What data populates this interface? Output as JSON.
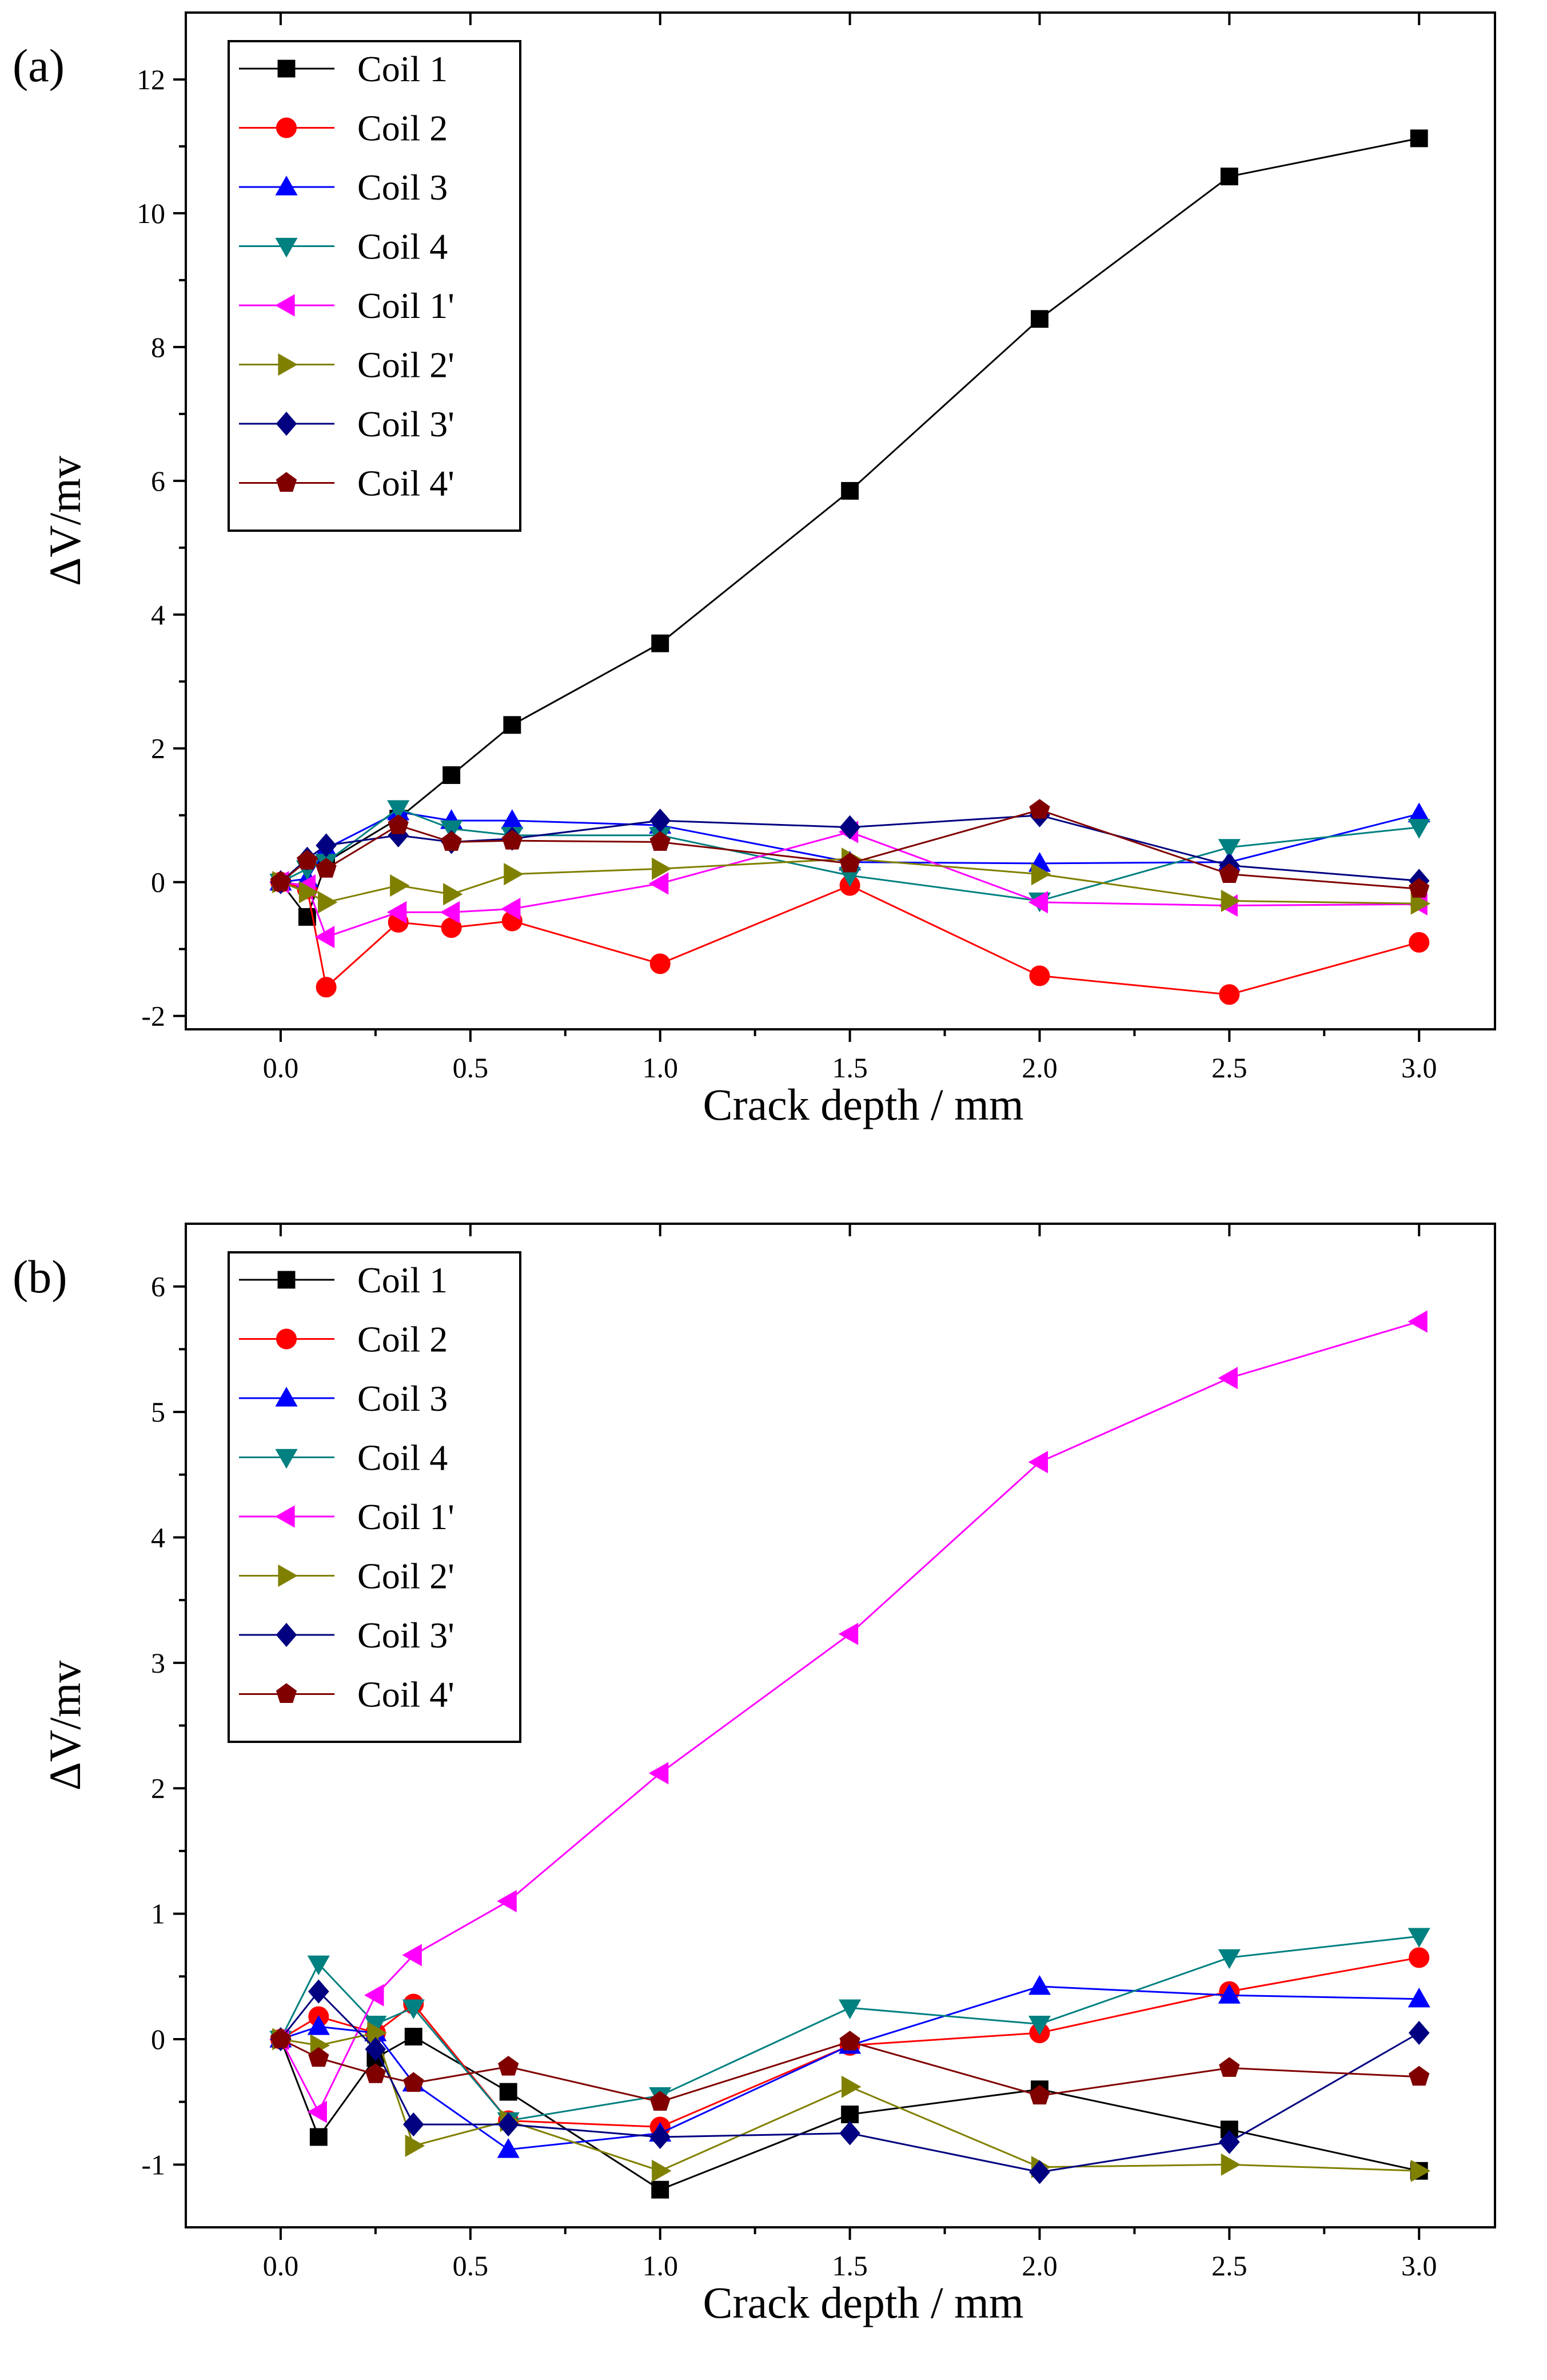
{
  "colors": {
    "Coil 1": "#000000",
    "Coil 2": "#ff0000",
    "Coil 3": "#0000ff",
    "Coil 4": "#008080",
    "Coil 1'": "#ff00ff",
    "Coil 2'": "#808000",
    "Coil 3'": "#000080",
    "Coil 4'": "#800000"
  },
  "markers": {
    "Coil 1": "square",
    "Coil 2": "circle",
    "Coil 3": "triangle-up",
    "Coil 4": "triangle-down",
    "Coil 1'": "triangle-left",
    "Coil 2'": "triangle-right",
    "Coil 3'": "diamond",
    "Coil 4'": "pentagon"
  },
  "chart_data": [
    {
      "type": "line",
      "panel_label": "(a)",
      "xlabel": "Crack depth / mm",
      "ylabel": "ΔV/mv",
      "xlim": [
        -0.25,
        3.2
      ],
      "ylim": [
        -2.2,
        13
      ],
      "xticks": [
        "0.0",
        "0.5",
        "1.0",
        "1.5",
        "2.0",
        "2.5",
        "3.0"
      ],
      "xtick_values": [
        0,
        0.5,
        1,
        1.5,
        2,
        2.5,
        3
      ],
      "yticks": [
        "-2",
        "0",
        "2",
        "4",
        "6",
        "8",
        "10",
        "12"
      ],
      "ytick_values": [
        -2,
        0,
        2,
        4,
        6,
        8,
        10,
        12
      ],
      "legend_position": "top-left",
      "series": [
        {
          "name": "Coil 1",
          "x": [
            0,
            0.07,
            0.12,
            0.31,
            0.45,
            0.61,
            1.0,
            1.5,
            2.0,
            2.5,
            3.0
          ],
          "values": [
            0,
            -0.52,
            0.3,
            0.95,
            1.6,
            2.35,
            3.57,
            5.85,
            8.42,
            10.55,
            11.12
          ]
        },
        {
          "name": "Coil 2",
          "x": [
            0,
            0.07,
            0.12,
            0.31,
            0.45,
            0.61,
            1.0,
            1.5,
            2.0,
            2.5,
            3.0
          ],
          "values": [
            0,
            -0.1,
            -1.57,
            -0.6,
            -0.68,
            -0.58,
            -1.22,
            -0.05,
            -1.4,
            -1.68,
            -0.9
          ]
        },
        {
          "name": "Coil 3",
          "x": [
            0,
            0.07,
            0.12,
            0.31,
            0.45,
            0.61,
            1.0,
            1.5,
            2.0,
            2.5,
            3.0
          ],
          "values": [
            0,
            0.05,
            0.5,
            1.05,
            0.92,
            0.92,
            0.85,
            0.3,
            0.28,
            0.3,
            1.02
          ]
        },
        {
          "name": "Coil 4",
          "x": [
            0,
            0.07,
            0.12,
            0.31,
            0.45,
            0.61,
            1.0,
            1.5,
            2.0,
            2.5,
            3.0
          ],
          "values": [
            0,
            0.2,
            0.3,
            1.1,
            0.8,
            0.7,
            0.7,
            0.1,
            -0.28,
            0.52,
            0.82
          ]
        },
        {
          "name": "Coil 1'",
          "x": [
            0,
            0.07,
            0.12,
            0.31,
            0.45,
            0.61,
            1.0,
            1.5,
            2.0,
            2.5,
            3.0
          ],
          "values": [
            0,
            -0.05,
            -0.82,
            -0.45,
            -0.45,
            -0.4,
            -0.02,
            0.75,
            -0.3,
            -0.35,
            -0.33
          ]
        },
        {
          "name": "Coil 2'",
          "x": [
            0,
            0.07,
            0.12,
            0.31,
            0.45,
            0.61,
            1.0,
            1.5,
            2.0,
            2.5,
            3.0
          ],
          "values": [
            0,
            -0.15,
            -0.3,
            -0.05,
            -0.18,
            0.12,
            0.2,
            0.35,
            0.12,
            -0.28,
            -0.32
          ]
        },
        {
          "name": "Coil 3'",
          "x": [
            0,
            0.07,
            0.12,
            0.31,
            0.45,
            0.61,
            1.0,
            1.5,
            2.0,
            2.5,
            3.0
          ],
          "values": [
            0,
            0.35,
            0.55,
            0.7,
            0.6,
            0.65,
            0.92,
            0.82,
            1.0,
            0.25,
            0.02
          ]
        },
        {
          "name": "Coil 4'",
          "x": [
            0,
            0.07,
            0.12,
            0.31,
            0.45,
            0.61,
            1.0,
            1.5,
            2.0,
            2.5,
            3.0
          ],
          "values": [
            0,
            0.32,
            0.2,
            0.85,
            0.6,
            0.62,
            0.6,
            0.28,
            1.08,
            0.12,
            -0.1
          ]
        }
      ]
    },
    {
      "type": "line",
      "panel_label": "(b)",
      "xlabel": "Crack depth / mm",
      "ylabel": "ΔV/mv",
      "xlim": [
        -0.25,
        3.2
      ],
      "ylim": [
        -1.5,
        6.5
      ],
      "xticks": [
        "0.0",
        "0.5",
        "1.0",
        "1.5",
        "2.0",
        "2.5",
        "3.0"
      ],
      "xtick_values": [
        0,
        0.5,
        1,
        1.5,
        2,
        2.5,
        3
      ],
      "yticks": [
        "-1",
        "0",
        "1",
        "2",
        "3",
        "4",
        "5",
        "6"
      ],
      "ytick_values": [
        -1,
        0,
        1,
        2,
        3,
        4,
        5,
        6
      ],
      "legend_position": "top-left",
      "series": [
        {
          "name": "Coil 1",
          "x": [
            0,
            0.1,
            0.25,
            0.35,
            0.6,
            1.0,
            1.5,
            2.0,
            2.5,
            3.0
          ],
          "values": [
            0,
            -0.78,
            -0.15,
            0.02,
            -0.42,
            -1.2,
            -0.6,
            -0.4,
            -0.72,
            -1.05
          ]
        },
        {
          "name": "Coil 2",
          "x": [
            0,
            0.1,
            0.25,
            0.35,
            0.6,
            1.0,
            1.5,
            2.0,
            2.5,
            3.0
          ],
          "values": [
            0,
            0.18,
            0.05,
            0.28,
            -0.65,
            -0.7,
            -0.05,
            0.05,
            0.38,
            0.65
          ]
        },
        {
          "name": "Coil 3",
          "x": [
            0,
            0.1,
            0.25,
            0.35,
            0.6,
            1.0,
            1.5,
            2.0,
            2.5,
            3.0
          ],
          "values": [
            0,
            0.1,
            0.05,
            -0.35,
            -0.88,
            -0.75,
            -0.05,
            0.42,
            0.35,
            0.32
          ]
        },
        {
          "name": "Coil 4",
          "x": [
            0,
            0.1,
            0.25,
            0.35,
            0.6,
            1.0,
            1.5,
            2.0,
            2.5,
            3.0
          ],
          "values": [
            0,
            0.6,
            0.12,
            0.25,
            -0.65,
            -0.45,
            0.25,
            0.12,
            0.65,
            0.82
          ]
        },
        {
          "name": "Coil 1'",
          "x": [
            0,
            0.1,
            0.25,
            0.35,
            0.6,
            1.0,
            1.5,
            2.0,
            2.5,
            3.0
          ],
          "values": [
            0,
            -0.58,
            0.35,
            0.67,
            1.1,
            2.12,
            3.23,
            4.6,
            5.27,
            5.72
          ]
        },
        {
          "name": "Coil 2'",
          "x": [
            0,
            0.1,
            0.25,
            0.35,
            0.6,
            1.0,
            1.5,
            2.0,
            2.5,
            3.0
          ],
          "values": [
            0,
            -0.05,
            0.05,
            -0.85,
            -0.65,
            -1.05,
            -0.38,
            -1.02,
            -1.0,
            -1.05
          ]
        },
        {
          "name": "Coil 3'",
          "x": [
            0,
            0.1,
            0.25,
            0.35,
            0.6,
            1.0,
            1.5,
            2.0,
            2.5,
            3.0
          ],
          "values": [
            0,
            0.38,
            -0.08,
            -0.68,
            -0.68,
            -0.78,
            -0.75,
            -1.06,
            -0.82,
            0.05
          ]
        },
        {
          "name": "Coil 4'",
          "x": [
            0,
            0.1,
            0.25,
            0.35,
            0.6,
            1.0,
            1.5,
            2.0,
            2.5,
            3.0
          ],
          "values": [
            0,
            -0.15,
            -0.28,
            -0.35,
            -0.22,
            -0.5,
            -0.02,
            -0.45,
            -0.23,
            -0.3
          ]
        }
      ]
    }
  ]
}
